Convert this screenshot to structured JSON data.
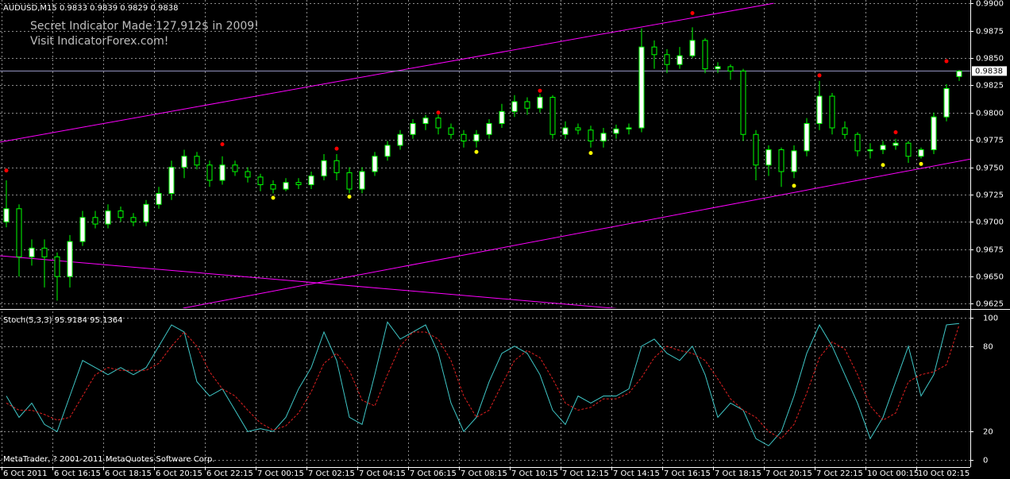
{
  "chart_data": [
    {
      "type": "candlestick",
      "header": "AUDUSD,M15  0.9833 0.9839 0.9829 0.9838",
      "watermark": [
        "Secret Indicator Made 127,912$ in 2009!",
        "Visit IndicatorForex.com!"
      ],
      "footer": "MetaTrader, ? 2001-2011 MetaQuotes Software Corp.",
      "categories": [
        "6 Oct 2011",
        null,
        null,
        null,
        "6 Oct 16:15",
        null,
        null,
        null,
        "6 Oct 18:15",
        null,
        null,
        null,
        "6 Oct 20:15",
        null,
        null,
        null,
        "6 Oct 22:15",
        null,
        null,
        null,
        "7 Oct 00:15",
        null,
        null,
        null,
        "7 Oct 02:15",
        null,
        null,
        null,
        "7 Oct 04:15",
        null,
        null,
        null,
        "7 Oct 06:15",
        null,
        null,
        null,
        "7 Oct 08:15",
        null,
        null,
        null,
        "7 Oct 10:15",
        null,
        null,
        null,
        "7 Oct 12:15",
        null,
        null,
        null,
        "7 Oct 14:15",
        null,
        null,
        null,
        "7 Oct 16:15",
        null,
        null,
        null,
        "7 Oct 18:15",
        null,
        null,
        null,
        "7 Oct 20:15",
        null,
        null,
        null,
        "7 Oct 22:15",
        null,
        null,
        null,
        "10 Oct 00:15",
        null,
        null,
        null,
        "10 Oct 02:15",
        null,
        null,
        null
      ],
      "open": [
        0.97,
        0.9712,
        0.9668,
        0.9676,
        0.9668,
        0.965,
        0.9682,
        0.9704,
        0.9698,
        0.971,
        0.9704,
        0.97,
        0.9716,
        0.9726,
        0.975,
        0.976,
        0.9752,
        0.9738,
        0.9752,
        0.9746,
        0.9741,
        0.9734,
        0.973,
        0.9736,
        0.9734,
        0.9742,
        0.9756,
        0.9745,
        0.973,
        0.9746,
        0.976,
        0.977,
        0.978,
        0.979,
        0.9795,
        0.9786,
        0.978,
        0.9774,
        0.978,
        0.979,
        0.9801,
        0.981,
        0.9804,
        0.9814,
        0.978,
        0.9786,
        0.9784,
        0.9774,
        0.9781,
        0.9785,
        0.9786,
        0.986,
        0.9853,
        0.9844,
        0.9852,
        0.9866,
        0.984,
        0.9842,
        0.9838,
        0.978,
        0.9752,
        0.9766,
        0.9746,
        0.9765,
        0.979,
        0.9815,
        0.9786,
        0.978,
        0.9765,
        0.9766,
        0.977,
        0.9772,
        0.976,
        0.9766,
        0.9796,
        0.9833
      ],
      "high": [
        0.9738,
        0.9716,
        0.9684,
        0.9684,
        0.9672,
        0.9688,
        0.971,
        0.971,
        0.9716,
        0.9714,
        0.9708,
        0.972,
        0.9732,
        0.9756,
        0.9766,
        0.9764,
        0.9756,
        0.976,
        0.9756,
        0.975,
        0.9744,
        0.9738,
        0.974,
        0.974,
        0.9746,
        0.9762,
        0.9762,
        0.975,
        0.975,
        0.9764,
        0.9774,
        0.9784,
        0.9794,
        0.9798,
        0.9798,
        0.979,
        0.9784,
        0.9784,
        0.9794,
        0.9808,
        0.9816,
        0.9814,
        0.9817,
        0.9816,
        0.9792,
        0.979,
        0.9788,
        0.9786,
        0.9789,
        0.979,
        0.9877,
        0.9866,
        0.9858,
        0.986,
        0.9878,
        0.9868,
        0.9846,
        0.9844,
        0.984,
        0.9784,
        0.977,
        0.9768,
        0.977,
        0.9795,
        0.9829,
        0.9818,
        0.9792,
        0.9782,
        0.9772,
        0.9774,
        0.9776,
        0.9774,
        0.9768,
        0.98,
        0.9826,
        0.9839
      ],
      "low": [
        0.9695,
        0.965,
        0.966,
        0.964,
        0.9628,
        0.964,
        0.9678,
        0.9694,
        0.9694,
        0.97,
        0.9696,
        0.9696,
        0.9712,
        0.972,
        0.974,
        0.9748,
        0.9732,
        0.9734,
        0.9742,
        0.9736,
        0.9728,
        0.9726,
        0.9728,
        0.973,
        0.973,
        0.9738,
        0.9738,
        0.9726,
        0.9726,
        0.9742,
        0.9756,
        0.9766,
        0.9776,
        0.9784,
        0.978,
        0.9776,
        0.9768,
        0.9768,
        0.9776,
        0.9786,
        0.9796,
        0.9798,
        0.98,
        0.9776,
        0.9776,
        0.978,
        0.9768,
        0.9768,
        0.9776,
        0.978,
        0.9782,
        0.984,
        0.9836,
        0.984,
        0.985,
        0.9836,
        0.9836,
        0.983,
        0.9774,
        0.9738,
        0.9742,
        0.9732,
        0.974,
        0.976,
        0.9784,
        0.978,
        0.9776,
        0.976,
        0.9758,
        0.9762,
        0.9766,
        0.9754,
        0.9758,
        0.9762,
        0.9792,
        0.9829
      ],
      "close": [
        0.9712,
        0.9668,
        0.9676,
        0.9668,
        0.965,
        0.9682,
        0.9704,
        0.9698,
        0.971,
        0.9704,
        0.97,
        0.9716,
        0.9726,
        0.975,
        0.976,
        0.9752,
        0.9738,
        0.9752,
        0.9746,
        0.9741,
        0.9734,
        0.973,
        0.9736,
        0.9734,
        0.9742,
        0.9756,
        0.9745,
        0.973,
        0.9746,
        0.976,
        0.977,
        0.978,
        0.979,
        0.9795,
        0.9786,
        0.978,
        0.9774,
        0.978,
        0.979,
        0.9801,
        0.981,
        0.9804,
        0.9814,
        0.978,
        0.9786,
        0.9784,
        0.9774,
        0.9781,
        0.9785,
        0.9786,
        0.986,
        0.9853,
        0.9844,
        0.9852,
        0.9866,
        0.984,
        0.9842,
        0.9838,
        0.978,
        0.9752,
        0.9766,
        0.9746,
        0.9765,
        0.979,
        0.9815,
        0.9786,
        0.978,
        0.9765,
        0.9766,
        0.977,
        0.9772,
        0.976,
        0.9766,
        0.9796,
        0.9822,
        0.9838
      ],
      "up_color": "#ffffff",
      "down_color": "#000000",
      "wick_color": "#00ff00",
      "fractals_up": [
        0.9747,
        null,
        null,
        null,
        null,
        null,
        null,
        null,
        null,
        null,
        null,
        null,
        null,
        null,
        null,
        null,
        null,
        0.9771,
        null,
        null,
        null,
        null,
        null,
        null,
        null,
        null,
        0.9767,
        null,
        null,
        null,
        null,
        null,
        null,
        null,
        0.98,
        null,
        null,
        null,
        null,
        null,
        null,
        null,
        0.982,
        null,
        null,
        null,
        null,
        null,
        null,
        null,
        null,
        null,
        null,
        null,
        0.9891,
        null,
        null,
        null,
        null,
        null,
        null,
        null,
        null,
        null,
        0.9834,
        null,
        null,
        null,
        null,
        null,
        0.9782,
        null,
        null,
        null,
        0.9847,
        null
      ],
      "fractals_down": [
        null,
        null,
        null,
        null,
        null,
        null,
        null,
        null,
        null,
        null,
        null,
        null,
        null,
        null,
        null,
        null,
        null,
        null,
        null,
        null,
        null,
        0.9722,
        null,
        null,
        null,
        null,
        null,
        0.9723,
        null,
        null,
        null,
        null,
        null,
        null,
        null,
        null,
        null,
        0.9764,
        null,
        null,
        null,
        null,
        null,
        null,
        null,
        null,
        0.9763,
        null,
        null,
        null,
        null,
        null,
        null,
        null,
        null,
        null,
        null,
        null,
        null,
        null,
        null,
        null,
        0.9733,
        null,
        null,
        null,
        null,
        null,
        null,
        0.9752,
        null,
        null,
        0.9753,
        null,
        null,
        null
      ],
      "fractal_up_color": "#ff0000",
      "fractal_down_color": "#ffff00",
      "trendlines": [
        {
          "x": [
            -0.5,
            60.4
          ],
          "y": [
            0.9773,
            0.99
          ],
          "color": "#ff00ff"
        },
        {
          "x": [
            13.9,
            78.4
          ],
          "y": [
            0.9621,
            0.9763
          ],
          "color": "#ff00ff"
        },
        {
          "x": [
            -0.5,
            50.75
          ],
          "y": [
            0.9669,
            0.9618
          ],
          "color": "#ff00ff"
        }
      ],
      "current_price": {
        "value": 0.9838,
        "label": "0.9838"
      },
      "ylim": [
        0.9621,
        0.9903
      ],
      "yticks": [
        {
          "value": 0.9625,
          "label": "0.9625"
        },
        {
          "value": 0.965,
          "label": "0.9650"
        },
        0.9675,
        {
          "value": 0.97,
          "label": "0.9700"
        },
        0.9725,
        {
          "value": 0.975,
          "label": "0.9750"
        },
        0.9775,
        {
          "value": 0.98,
          "label": "0.9800"
        },
        0.9825,
        {
          "value": 0.985,
          "label": "0.9850"
        },
        0.9875,
        {
          "value": 0.99,
          "label": "0.9900"
        }
      ],
      "grid": true
    },
    {
      "type": "line",
      "title": "Stoch(5,3,3) 95.9184 95.1364",
      "series": [
        {
          "color": "#3fc7c7",
          "dashed": false,
          "values": [
            45,
            30,
            40,
            25,
            20,
            45,
            70,
            65,
            60,
            65,
            60,
            65,
            80,
            95,
            90,
            55,
            45,
            50,
            35,
            20,
            22,
            20,
            30,
            50,
            65,
            90,
            70,
            30,
            25,
            60,
            97,
            85,
            90,
            95,
            75,
            40,
            20,
            30,
            55,
            75,
            80,
            75,
            60,
            35,
            25,
            45,
            40,
            45,
            45,
            50,
            80,
            85,
            75,
            70,
            80,
            60,
            30,
            40,
            35,
            15,
            10,
            20,
            45,
            75,
            95,
            80,
            60,
            40,
            15,
            30,
            55,
            80,
            45,
            60,
            95,
            96
          ]
        },
        {
          "color": "#e02020",
          "dashed": true,
          "values": [
            40,
            35,
            35,
            32,
            28,
            30,
            45,
            60,
            65,
            63,
            63,
            63,
            68,
            80,
            90,
            80,
            62,
            50,
            45,
            35,
            26,
            21,
            24,
            33,
            48,
            68,
            75,
            63,
            42,
            38,
            60,
            80,
            90,
            90,
            85,
            70,
            45,
            30,
            35,
            53,
            70,
            77,
            72,
            57,
            40,
            35,
            37,
            43,
            43,
            47,
            58,
            72,
            80,
            77,
            75,
            70,
            57,
            43,
            35,
            30,
            20,
            15,
            25,
            47,
            72,
            83,
            78,
            60,
            38,
            28,
            33,
            55,
            60,
            62,
            67,
            95
          ]
        }
      ],
      "ylim": [
        -5,
        104.5
      ],
      "yticks": [
        0,
        20,
        80,
        100
      ],
      "grid": true
    }
  ]
}
